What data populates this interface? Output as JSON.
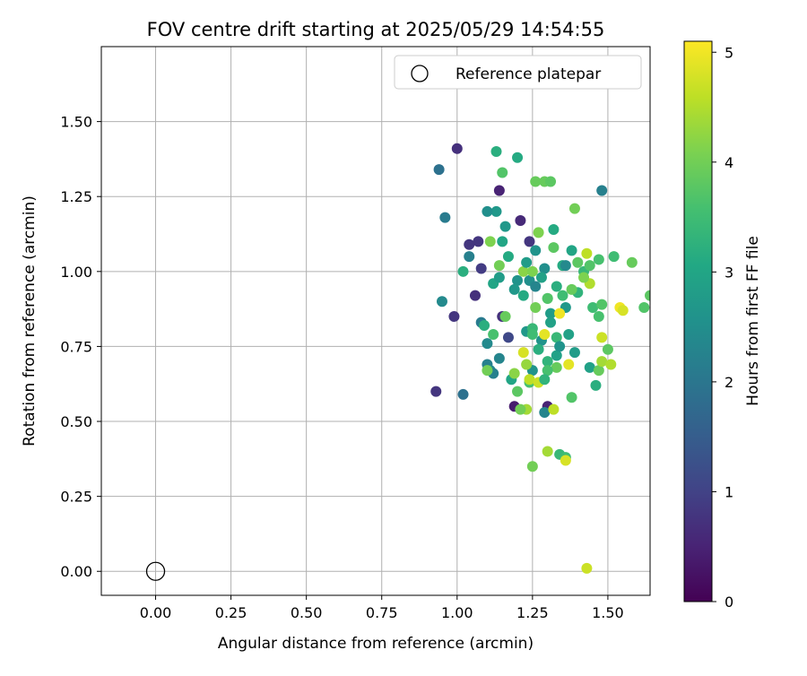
{
  "chart_data": {
    "type": "scatter",
    "title": "FOV centre drift starting at 2025/05/29 14:54:55",
    "xlabel": "Angular distance from reference (arcmin)",
    "ylabel": "Rotation from reference (arcmin)",
    "xlim": [
      -0.18,
      1.64
    ],
    "ylim": [
      -0.08,
      1.75
    ],
    "x_ticks": [
      0.0,
      0.25,
      0.5,
      0.75,
      1.0,
      1.25,
      1.5
    ],
    "x_tick_labels": [
      "0.00",
      "0.25",
      "0.50",
      "0.75",
      "1.00",
      "1.25",
      "1.50"
    ],
    "y_ticks": [
      0.0,
      0.25,
      0.5,
      0.75,
      1.0,
      1.25,
      1.5
    ],
    "y_tick_labels": [
      "0.00",
      "0.25",
      "0.50",
      "0.75",
      "1.00",
      "1.25",
      "1.50"
    ],
    "grid": true,
    "legend": {
      "position": "top-right",
      "entries": [
        "Reference platepar"
      ]
    },
    "colorbar": {
      "label": "Hours from first FF file",
      "range": [
        0,
        5.1
      ],
      "ticks": [
        0,
        1,
        2,
        3,
        4,
        5
      ],
      "tick_labels": [
        "0",
        "1",
        "2",
        "3",
        "4",
        "5"
      ],
      "colormap": "viridis"
    },
    "series": [
      {
        "name": "Reference platepar",
        "marker": "open-circle",
        "points": [
          [
            0.0,
            0.0
          ]
        ]
      },
      {
        "marker": "filled-circle",
        "points": [
          [
            1.0,
            1.41,
            0.7
          ],
          [
            0.94,
            1.34,
            1.9
          ],
          [
            1.14,
            1.27,
            0.5
          ],
          [
            1.21,
            1.17,
            0.6
          ],
          [
            1.04,
            1.09,
            0.8
          ],
          [
            1.07,
            1.1,
            0.8
          ],
          [
            1.08,
            1.01,
            0.9
          ],
          [
            1.24,
            1.1,
            0.8
          ],
          [
            1.06,
            0.92,
            0.7
          ],
          [
            0.99,
            0.85,
            0.8
          ],
          [
            1.15,
            0.85,
            0.7
          ],
          [
            1.17,
            0.78,
            1.1
          ],
          [
            0.93,
            0.6,
            0.8
          ],
          [
            1.19,
            0.55,
            0.4
          ],
          [
            1.3,
            0.55,
            0.5
          ],
          [
            1.48,
            1.27,
            2.2
          ],
          [
            0.96,
            1.18,
            2.1
          ],
          [
            0.95,
            0.9,
            2.4
          ],
          [
            1.02,
            0.59,
            1.9
          ],
          [
            1.04,
            1.05,
            2.2
          ],
          [
            1.08,
            0.83,
            2.1
          ],
          [
            1.1,
            0.76,
            2.4
          ],
          [
            1.1,
            0.69,
            2.2
          ],
          [
            1.11,
            0.67,
            2.4
          ],
          [
            1.12,
            0.66,
            2.2
          ],
          [
            1.14,
            0.71,
            2.3
          ],
          [
            1.29,
            0.53,
            2.3
          ],
          [
            1.29,
            1.01,
            2.5
          ],
          [
            1.28,
            0.77,
            2.6
          ],
          [
            1.24,
            0.97,
            2.5
          ],
          [
            1.15,
            1.1,
            3.0
          ],
          [
            1.13,
            1.2,
            2.7
          ],
          [
            1.16,
            1.15,
            2.7
          ],
          [
            1.1,
            1.2,
            2.5
          ],
          [
            1.23,
            0.8,
            2.7
          ],
          [
            1.25,
            0.67,
            2.6
          ],
          [
            1.26,
            1.07,
            2.6
          ],
          [
            1.31,
            0.86,
            2.8
          ],
          [
            1.33,
            0.72,
            2.9
          ],
          [
            1.36,
            0.88,
            2.7
          ],
          [
            1.37,
            0.79,
            2.9
          ],
          [
            1.39,
            0.73,
            2.8
          ],
          [
            1.44,
            0.68,
            2.9
          ],
          [
            1.46,
            0.62,
            3.2
          ],
          [
            1.13,
            1.4,
            3.2
          ],
          [
            1.2,
            1.38,
            3.1
          ],
          [
            1.32,
            1.14,
            3.1
          ],
          [
            1.38,
            1.07,
            3.0
          ],
          [
            1.12,
            0.96,
            3.0
          ],
          [
            1.18,
            0.64,
            3.0
          ],
          [
            1.22,
            0.92,
            3.1
          ],
          [
            1.25,
            0.81,
            3.4
          ],
          [
            1.27,
            0.74,
            3.2
          ],
          [
            1.3,
            0.7,
            3.3
          ],
          [
            1.33,
            0.95,
            3.2
          ],
          [
            1.35,
            1.02,
            3.1
          ],
          [
            1.4,
            0.93,
            3.3
          ],
          [
            1.42,
            1.0,
            3.4
          ],
          [
            1.45,
            0.88,
            3.5
          ],
          [
            1.47,
            0.85,
            3.6
          ],
          [
            1.02,
            1.0,
            3.2
          ],
          [
            1.09,
            0.82,
            3.2
          ],
          [
            1.12,
            0.79,
            3.6
          ],
          [
            1.15,
            1.33,
            3.7
          ],
          [
            1.2,
            0.6,
            3.8
          ],
          [
            1.24,
            0.63,
            3.6
          ],
          [
            1.26,
            1.3,
            3.9
          ],
          [
            1.29,
            1.3,
            3.9
          ],
          [
            1.31,
            1.3,
            3.8
          ],
          [
            1.27,
            1.13,
            4.1
          ],
          [
            1.32,
            1.08,
            3.8
          ],
          [
            1.3,
            0.91,
            3.6
          ],
          [
            1.33,
            0.68,
            3.9
          ],
          [
            1.34,
            0.39,
            3.4
          ],
          [
            1.36,
            0.38,
            3.5
          ],
          [
            1.38,
            0.58,
            3.7
          ],
          [
            1.39,
            1.21,
            4.0
          ],
          [
            1.4,
            1.03,
            3.8
          ],
          [
            1.44,
            1.02,
            3.7
          ],
          [
            1.47,
            1.04,
            3.6
          ],
          [
            1.52,
            1.05,
            3.5
          ],
          [
            1.58,
            1.03,
            3.9
          ],
          [
            1.5,
            0.74,
            3.8
          ],
          [
            1.48,
            0.89,
            3.7
          ],
          [
            1.47,
            0.67,
            3.9
          ],
          [
            1.62,
            0.88,
            3.7
          ],
          [
            1.64,
            0.92,
            3.8
          ],
          [
            1.25,
            0.35,
            4.0
          ],
          [
            1.3,
            0.4,
            4.4
          ],
          [
            1.36,
            0.37,
            4.8
          ],
          [
            1.32,
            0.54,
            4.6
          ],
          [
            1.23,
            0.54,
            4.4
          ],
          [
            1.22,
            0.73,
            4.8
          ],
          [
            1.24,
            0.64,
            4.6
          ],
          [
            1.27,
            0.63,
            4.7
          ],
          [
            1.29,
            0.79,
            4.9
          ],
          [
            1.34,
            0.86,
            5.0
          ],
          [
            1.37,
            0.69,
            4.9
          ],
          [
            1.43,
            0.01,
            4.7
          ],
          [
            1.44,
            0.96,
            4.5
          ],
          [
            1.43,
            1.06,
            4.6
          ],
          [
            1.48,
            0.78,
            4.7
          ],
          [
            1.48,
            0.7,
            4.4
          ],
          [
            1.51,
            0.69,
            4.5
          ],
          [
            1.54,
            0.88,
            5.0
          ],
          [
            1.55,
            0.87,
            4.8
          ],
          [
            1.22,
            1.0,
            4.2
          ],
          [
            1.25,
            1.0,
            4.1
          ],
          [
            1.14,
            1.02,
            4.0
          ],
          [
            1.11,
            1.1,
            4.1
          ],
          [
            1.23,
            0.69,
            4.3
          ],
          [
            1.19,
            0.66,
            4.2
          ],
          [
            1.1,
            0.67,
            4.0
          ],
          [
            1.16,
            0.85,
            3.9
          ],
          [
            1.21,
            0.54,
            4.0
          ],
          [
            1.26,
            0.88,
            4.0
          ],
          [
            1.3,
            0.91,
            3.7
          ],
          [
            1.35,
            0.92,
            3.5
          ],
          [
            1.38,
            0.94,
            3.9
          ],
          [
            1.42,
            0.98,
            4.1
          ],
          [
            1.3,
            0.67,
            3.6
          ],
          [
            1.33,
            0.78,
            3.4
          ],
          [
            1.31,
            0.83,
            2.9
          ],
          [
            1.28,
            0.98,
            2.9
          ],
          [
            1.2,
            0.97,
            2.6
          ],
          [
            1.23,
            1.03,
            2.8
          ],
          [
            1.17,
            1.05,
            3.1
          ],
          [
            1.19,
            0.94,
            2.7
          ],
          [
            1.26,
            0.95,
            2.3
          ],
          [
            1.34,
            0.75,
            2.6
          ],
          [
            1.36,
            1.02,
            2.4
          ],
          [
            1.14,
            0.98,
            2.8
          ],
          [
            1.29,
            0.64,
            3.3
          ],
          [
            1.25,
            0.79,
            3.5
          ]
        ]
      }
    ]
  }
}
